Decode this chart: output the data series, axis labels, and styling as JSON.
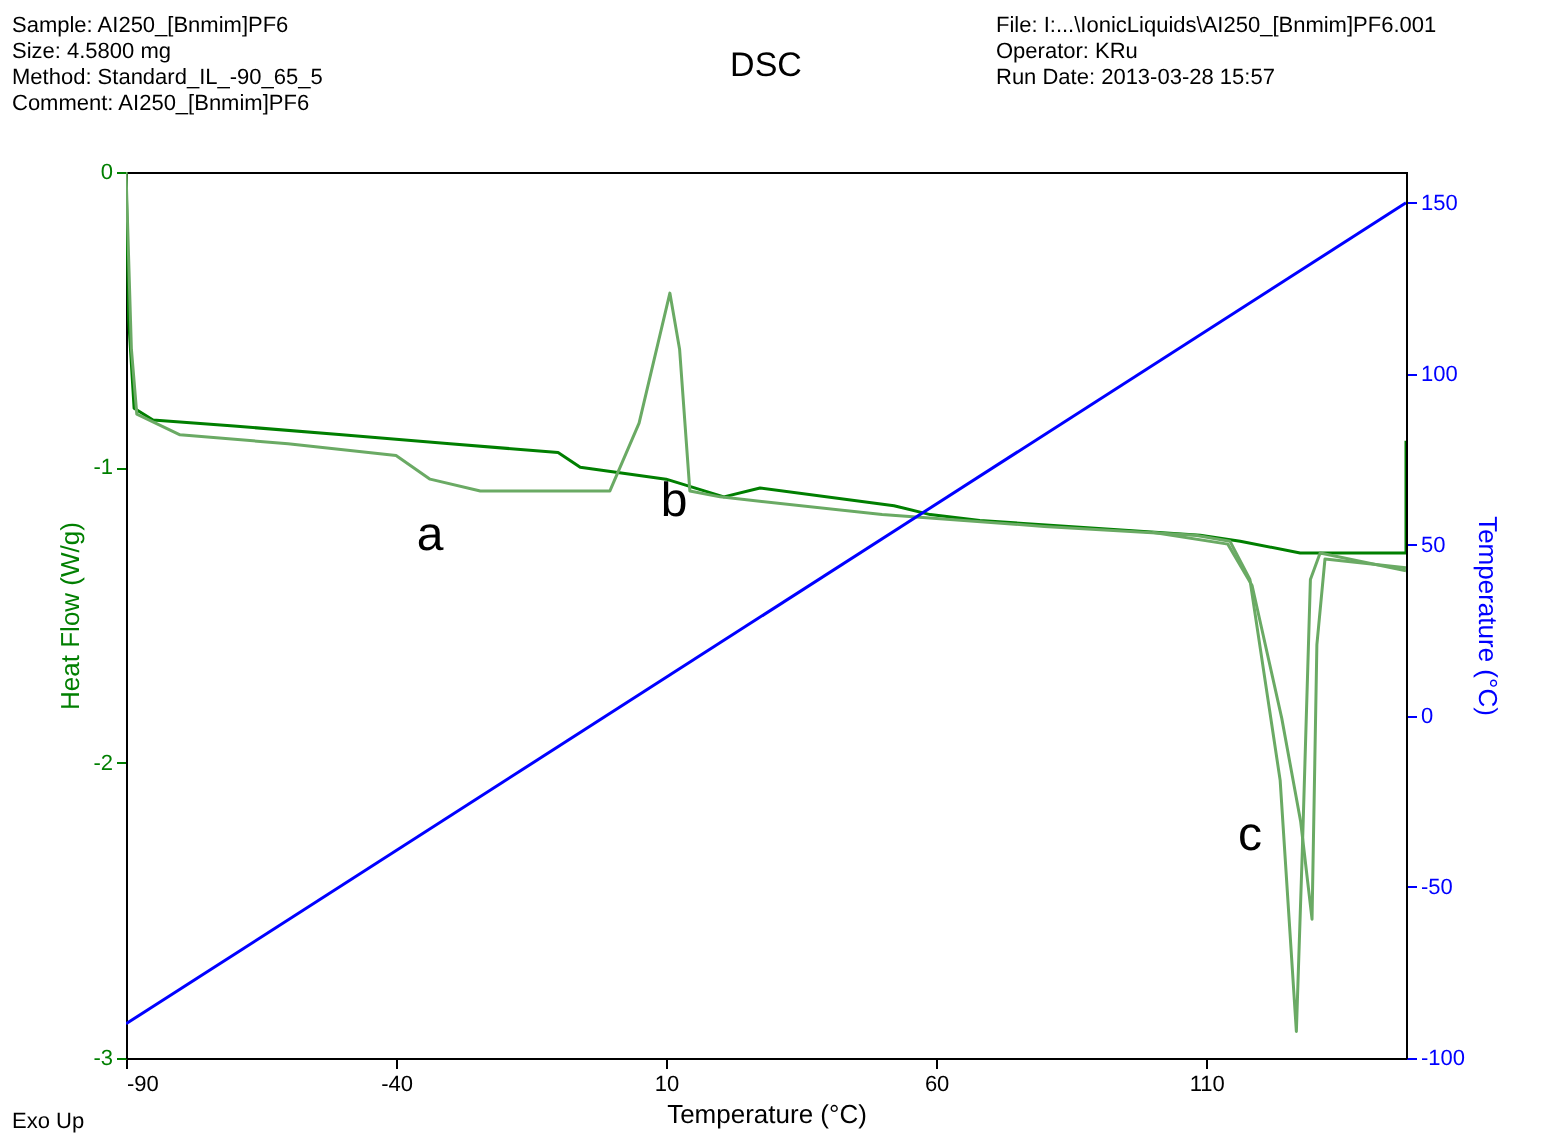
{
  "chart_data": {
    "type": "line",
    "title": "DSC",
    "xlabel": "Temperature (°C)",
    "ylabel": "Heat Flow (W/g)",
    "y2label": "Temperature (°C)",
    "xlim": [
      -90,
      147
    ],
    "xticks": [
      -90,
      -40,
      10,
      60,
      110
    ],
    "ylim": [
      -3,
      0
    ],
    "yticks": [
      -3,
      -2,
      -1,
      0
    ],
    "y2lim": [
      -100,
      159
    ],
    "y2ticks": [
      -100,
      -50,
      0,
      50,
      100,
      150
    ],
    "grid": false,
    "legend": false,
    "marker": "none",
    "line_style": "solid",
    "series": [
      {
        "color": "#007f00",
        "x": [
          -90,
          -89.5,
          -88.5,
          -85,
          -70,
          -50,
          -30,
          -10,
          -5.9,
          10,
          20.7,
          27.4,
          52.2,
          58.9,
          68.1,
          108.9,
          116.3,
          127.4,
          147,
          147
        ],
        "values": [
          0,
          -0.5,
          -0.8,
          -0.84,
          -0.86,
          -0.89,
          -0.92,
          -0.95,
          -1.0,
          -1.04,
          -1.1,
          -1.07,
          -1.13,
          -1.16,
          -1.18,
          -1.23,
          -1.25,
          -1.29,
          -1.29,
          -0.91
        ]
      },
      {
        "color": "#6aaa64",
        "x": [
          -90,
          -89,
          -88,
          -80,
          -60,
          -40,
          -33.7,
          -24.4,
          -0.4,
          5,
          10.7,
          12.5,
          14.4,
          20,
          50,
          80,
          108,
          114.4,
          118.1,
          123.7,
          126.7,
          127.8,
          129.3,
          131.1,
          147
        ],
        "values": [
          0,
          -0.6,
          -0.82,
          -0.89,
          -0.92,
          -0.96,
          -1.04,
          -1.08,
          -1.08,
          -0.85,
          -0.41,
          -0.6,
          -1.08,
          -1.1,
          -1.16,
          -1.2,
          -1.23,
          -1.25,
          -1.38,
          -2.06,
          -2.91,
          -2.3,
          -1.38,
          -1.29,
          -1.35
        ]
      },
      {
        "color": "#6aaa64",
        "x": [
          100,
          114,
          118.5,
          124,
          127.5,
          129.6,
          130.5,
          132,
          147
        ],
        "values": [
          -1.22,
          -1.26,
          -1.4,
          -1.85,
          -2.2,
          -2.53,
          -1.6,
          -1.31,
          -1.34
        ]
      },
      {
        "color": "#0000ff",
        "axis": "y2",
        "x": [
          -90,
          147
        ],
        "values": [
          -90,
          150
        ]
      }
    ],
    "annotations": [
      "Sample: AI250_[Bnmim]PF6",
      "Size:  4.5800 mg",
      "Method: Standard_IL_-90_65_5",
      "Comment: AI250_[Bnmim]PF6",
      "File: I:...\\IonicLiquids\\AI250_[Bnmim]PF6.001",
      "Operator: KRu",
      "Run Date: 2013-03-28 15:57",
      "Exo Up",
      "a",
      "b",
      "c"
    ]
  }
}
